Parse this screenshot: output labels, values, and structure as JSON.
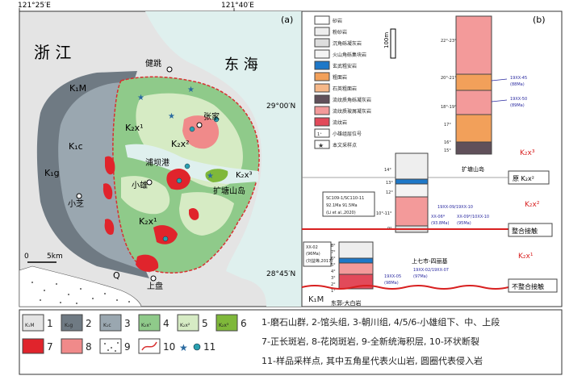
{
  "coords": {
    "top_left": "121°25′E",
    "top_center": "121°40′E",
    "lat_29": "29°00′N",
    "lat_2845": "28°45′N"
  },
  "panel_a": {
    "label": "(a)",
    "regions": {
      "zhejiang": "浙 江",
      "donghai": "东 海"
    },
    "places": {
      "jiantiao": "健跳",
      "zhangjia": "张家",
      "xiaoxiong": "小雄",
      "xiaozhi": "小芝",
      "shangpan": "上盘",
      "pubagang": "浦坝港",
      "kuotang": "扩塘山岛"
    },
    "units": {
      "k1m": "K₁M",
      "k1c": "K₁c",
      "k1g": "K₁g",
      "k2x1a": "K₂x¹",
      "k2x1b": "K₂x¹",
      "k2x2": "K₂x²",
      "k2x3": "K₂x³",
      "q": "Q"
    },
    "scale": {
      "zero": "0",
      "five": "5km"
    }
  },
  "panel_b": {
    "label": "(b)",
    "legend": [
      "砂岩",
      "粉砂岩",
      "沉角砾凝灰岩",
      "火山角砾集块岩",
      "玄武粗安岩",
      "粗面岩",
      "石英粗面岩",
      "流纹质角砾凝灰岩",
      "流纹质玻屑凝灰岩",
      "流纹岩",
      "小雄组层位号",
      "本文采样点"
    ],
    "legend_num_symbol": "1⁺",
    "scale": "100m",
    "column_right_label": "扩塘山岛",
    "column_mid_label": "上七市-四丽基",
    "column_left_label": "东郭-大白岩",
    "layers_right": [
      "22°-23°",
      "20°-21°",
      "18°-19°",
      "17°",
      "16°",
      "15°"
    ],
    "layers_mid": [
      "14°",
      "13°",
      "12°",
      "10°-11°",
      "9°"
    ],
    "layers_left": [
      "8°",
      "7°",
      "6°",
      "5°",
      "4°",
      "3°",
      "2°",
      "1°"
    ],
    "samples": {
      "s1": "19XX-45",
      "s1age": "(88Ma)",
      "s2": "19XX-50",
      "s2age": "(89Ma)",
      "s3": "19XX-09/19XX-10",
      "s4": "XX-06*",
      "s4age": "(93.8Ma)",
      "s5": "XX-09*/10XX-10",
      "s5age": "(95Ma)",
      "ref1": "SC109-1/SC110-11",
      "ref1b": "92.1Ma   91.5Ma",
      "ref1c": "(Li et al.,2020)",
      "ref2": "XX-02",
      "ref2b": "(96Ma)",
      "ref2c": "(刘益等,2017)",
      "s6": "19XX-02/19XX-07",
      "s6age": "(97Ma)",
      "s7": "19XX-05",
      "s7age": "(98Ma)"
    },
    "units": {
      "k2x3": "K₂x³",
      "k2x2": "K₂x²",
      "k2x1": "K₂x¹",
      "k1m": "K₁M"
    },
    "boxes": {
      "yuan": "原 K₂x²",
      "zhenghe": "整合接触",
      "bzhenghe": "不整合接触"
    }
  },
  "bottom_legend": {
    "items": [
      {
        "num": "1",
        "label": "K₁M"
      },
      {
        "num": "2",
        "label": "K₁g"
      },
      {
        "num": "3",
        "label": "K₁c"
      },
      {
        "num": "4",
        "label": "K₂x¹"
      },
      {
        "num": "5",
        "label": "K₂x²"
      },
      {
        "num": "6",
        "label": "K₂x³"
      },
      {
        "num": "7",
        "label": ""
      },
      {
        "num": "8",
        "label": ""
      },
      {
        "num": "9",
        "label": ""
      },
      {
        "num": "10",
        "label": ""
      },
      {
        "num": "11",
        "label": ""
      }
    ],
    "text": [
      "1-磨石山群, 2-馆头组, 3-朝川组, 4/5/6-小雄组下、中、上段",
      "7-正长斑岩, 8-花岗斑岩, 9-全新统海积层, 10-环状断裂",
      "11-样品采样点, 其中五角星代表火山岩, 圆圈代表侵入岩"
    ]
  },
  "colors": {
    "k1m": "#e4e4e4",
    "k1c": "#9aa7b0",
    "k1g": "#6f7a83",
    "k2x1": "#8fca8a",
    "k2x2": "#d6ebc4",
    "k2x3": "#7fb83a",
    "syenite": "#e0242c",
    "granite": "#f08a8a",
    "sea": "#dff0ee",
    "fault": "#d83030",
    "sample": "#2aa0b0"
  }
}
